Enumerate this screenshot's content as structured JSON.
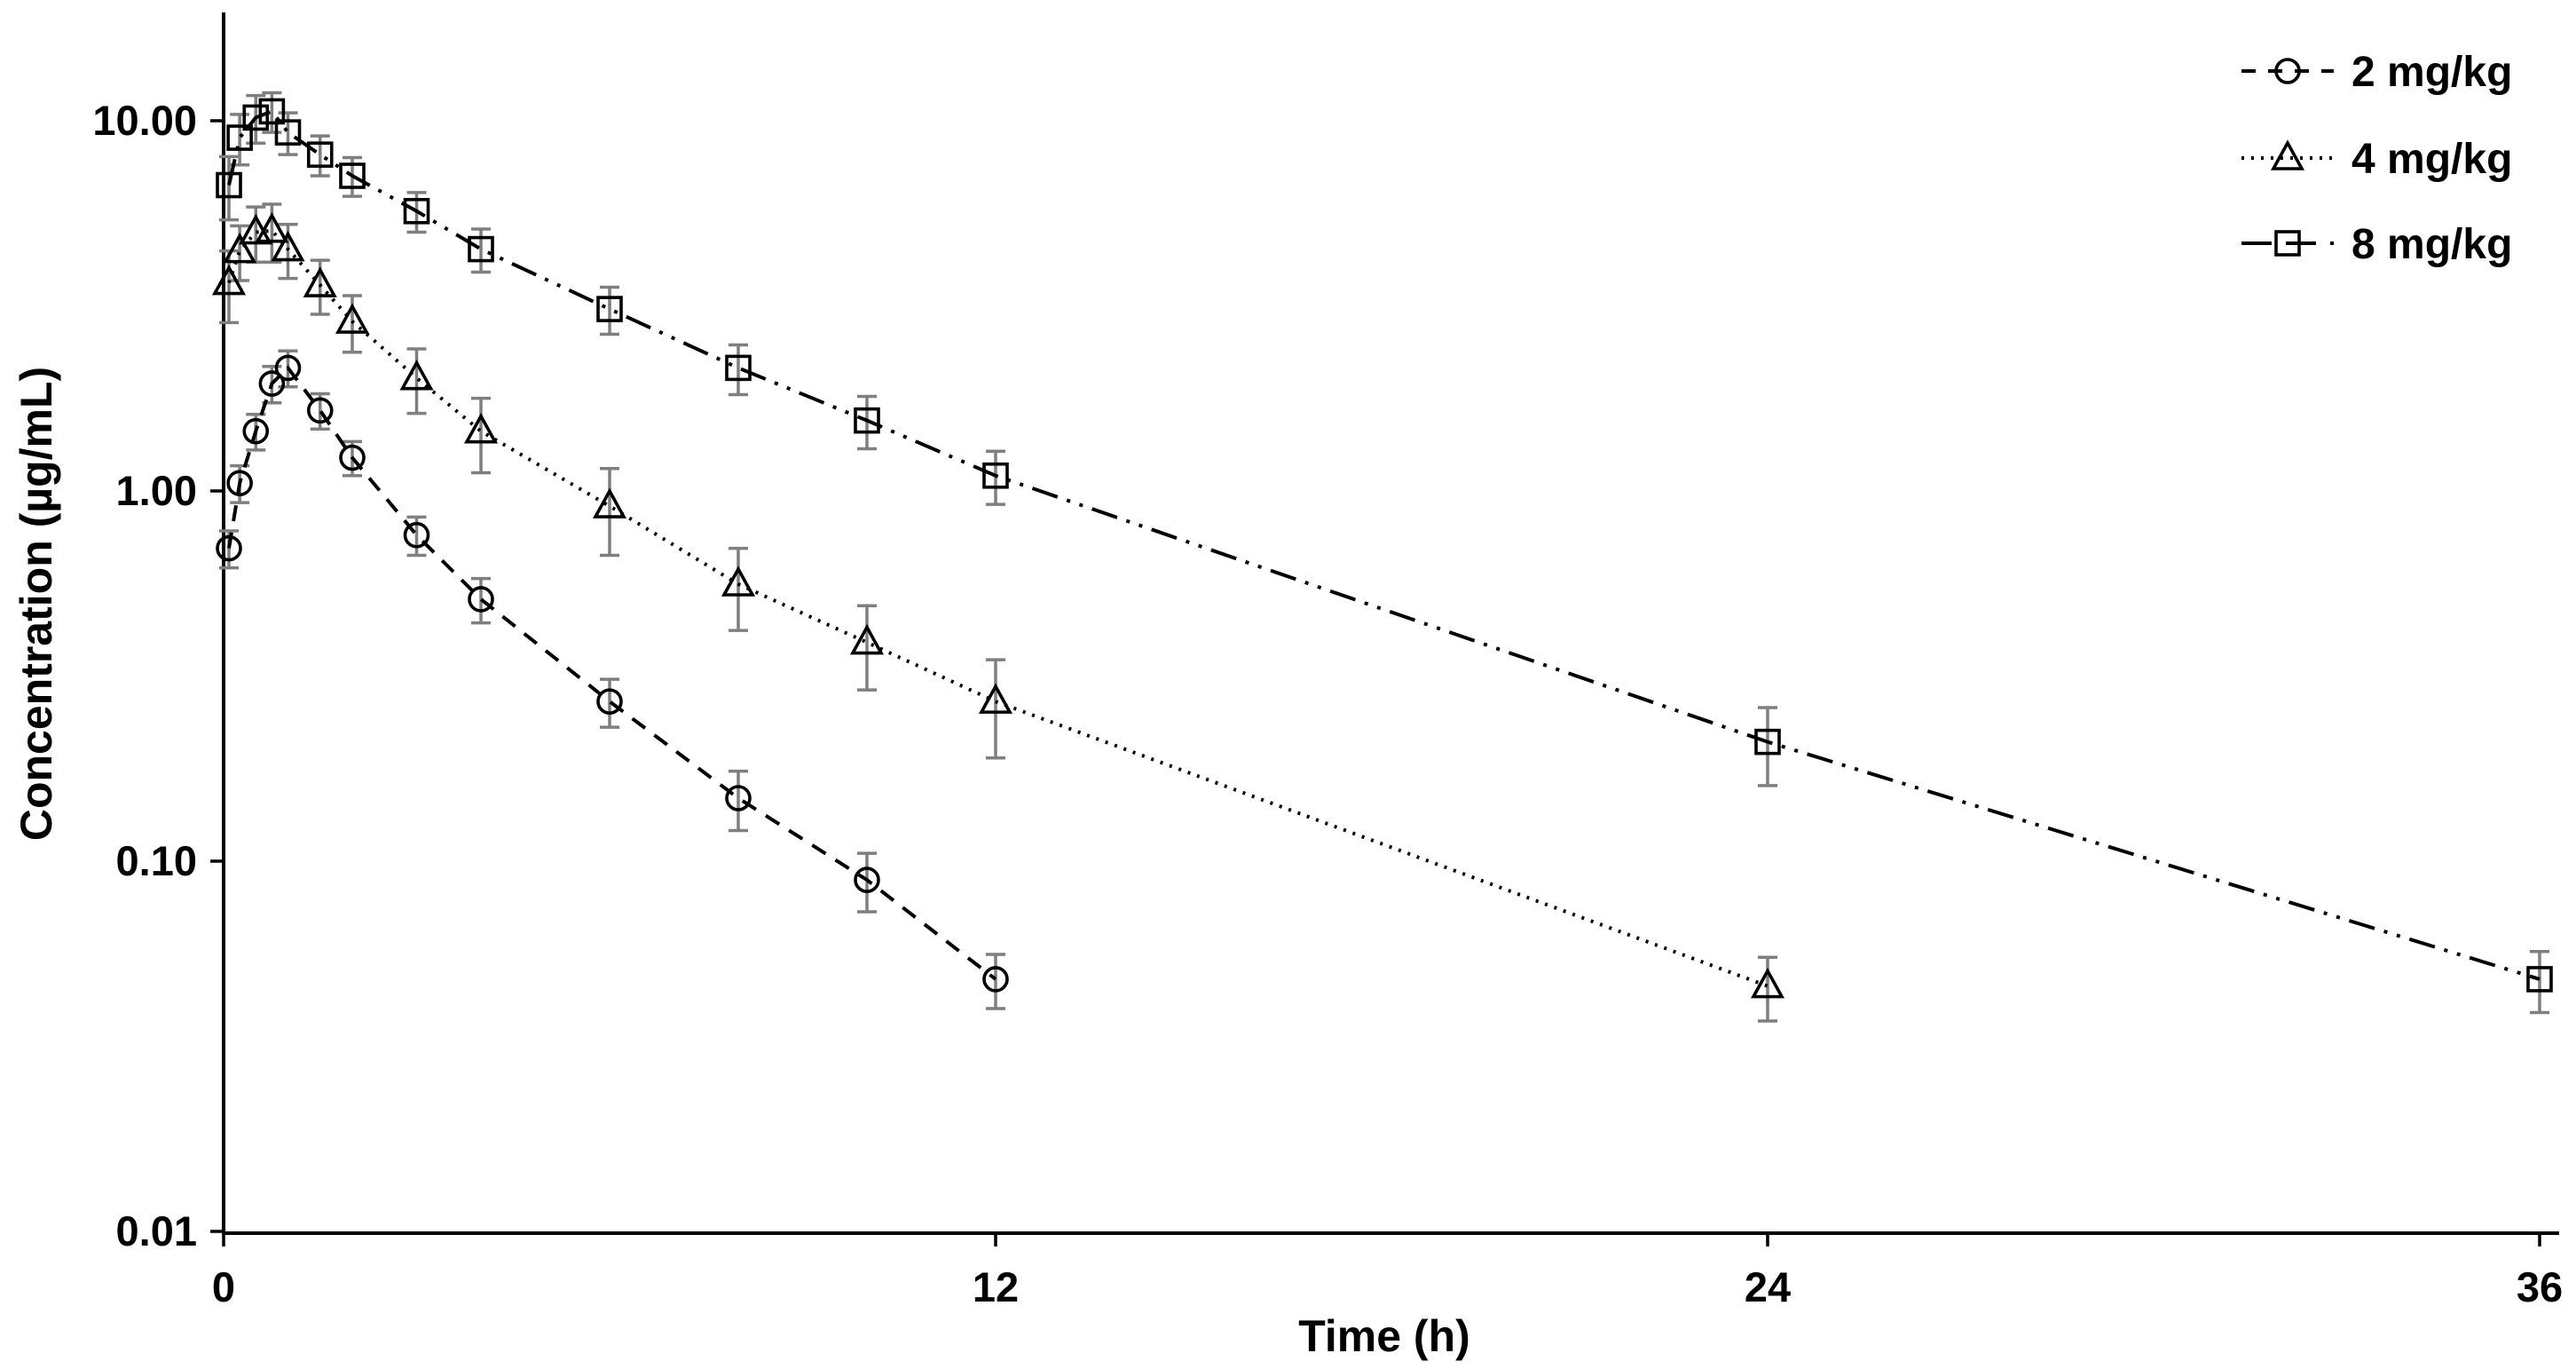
{
  "figure": {
    "background_color": "#ffffff",
    "line_color": "#000000",
    "error_bar_color": "#7f7f7f",
    "text_color": "#000000"
  },
  "x_axis": {
    "label": "Time (h)",
    "tick_labels": [
      "0",
      "12",
      "24",
      "36"
    ],
    "tick_values": [
      0,
      12,
      24,
      36
    ]
  },
  "y_axis": {
    "label": "Concentration (µg/mL)",
    "tick_labels": [
      "10.00",
      "1.00",
      "0.10",
      "0.01"
    ],
    "tick_values": [
      10,
      1,
      0.1,
      0.01
    ],
    "scale": "log"
  },
  "legend": {
    "items": [
      {
        "label": "2 mg/kg",
        "marker": "circle",
        "line_style": "dashed"
      },
      {
        "label": "4 mg/kg",
        "marker": "triangle",
        "line_style": "dotted"
      },
      {
        "label": "8 mg/kg",
        "marker": "square",
        "line_style": "dash-dot-dot"
      }
    ]
  },
  "chart_data": {
    "type": "line",
    "title": "",
    "xlabel": "Time (h)",
    "ylabel": "Concentration (µg/mL)",
    "xlim": [
      0,
      36.5
    ],
    "ylim": [
      0.01,
      20
    ],
    "y_scale": "log",
    "grid": false,
    "legend_position": "top-right",
    "series": [
      {
        "name": "2 mg/kg",
        "marker": "circle",
        "line_style": "dashed",
        "x": [
          0.083,
          0.25,
          0.5,
          0.75,
          1,
          1.5,
          2,
          3,
          4,
          6,
          8,
          10,
          12
        ],
        "y": [
          0.7,
          1.05,
          1.45,
          1.95,
          2.15,
          1.65,
          1.23,
          0.76,
          0.51,
          0.27,
          0.148,
          0.089,
          0.048
        ],
        "err": [
          0.08,
          0.12,
          0.16,
          0.22,
          0.24,
          0.18,
          0.13,
          0.09,
          0.07,
          0.04,
          0.027,
          0.016,
          0.008
        ]
      },
      {
        "name": "4 mg/kg",
        "marker": "triangle",
        "line_style": "dotted",
        "x": [
          0.083,
          0.25,
          0.5,
          0.75,
          1,
          1.5,
          2,
          3,
          4,
          6,
          8,
          10,
          12,
          24
        ],
        "y": [
          3.65,
          4.45,
          5.0,
          5.05,
          4.5,
          3.6,
          2.87,
          2.02,
          1.45,
          0.91,
          0.56,
          0.39,
          0.27,
          0.046
        ],
        "err": [
          0.8,
          0.75,
          0.85,
          0.9,
          0.75,
          0.6,
          0.5,
          0.4,
          0.33,
          0.24,
          0.14,
          0.1,
          0.08,
          0.009
        ]
      },
      {
        "name": "8 mg/kg",
        "marker": "square",
        "line_style": "dash-dot-dot",
        "x": [
          0.083,
          0.25,
          0.5,
          0.75,
          1,
          1.5,
          2,
          3,
          4,
          6,
          8,
          10,
          12,
          24,
          36
        ],
        "y": [
          6.7,
          9.0,
          10.2,
          10.6,
          9.3,
          8.1,
          7.1,
          5.7,
          4.5,
          3.1,
          2.15,
          1.55,
          1.1,
          0.21,
          0.048
        ],
        "err": [
          1.3,
          1.4,
          1.5,
          1.3,
          1.2,
          1.0,
          0.85,
          0.7,
          0.6,
          0.45,
          0.33,
          0.25,
          0.18,
          0.05,
          0.009
        ]
      }
    ]
  }
}
